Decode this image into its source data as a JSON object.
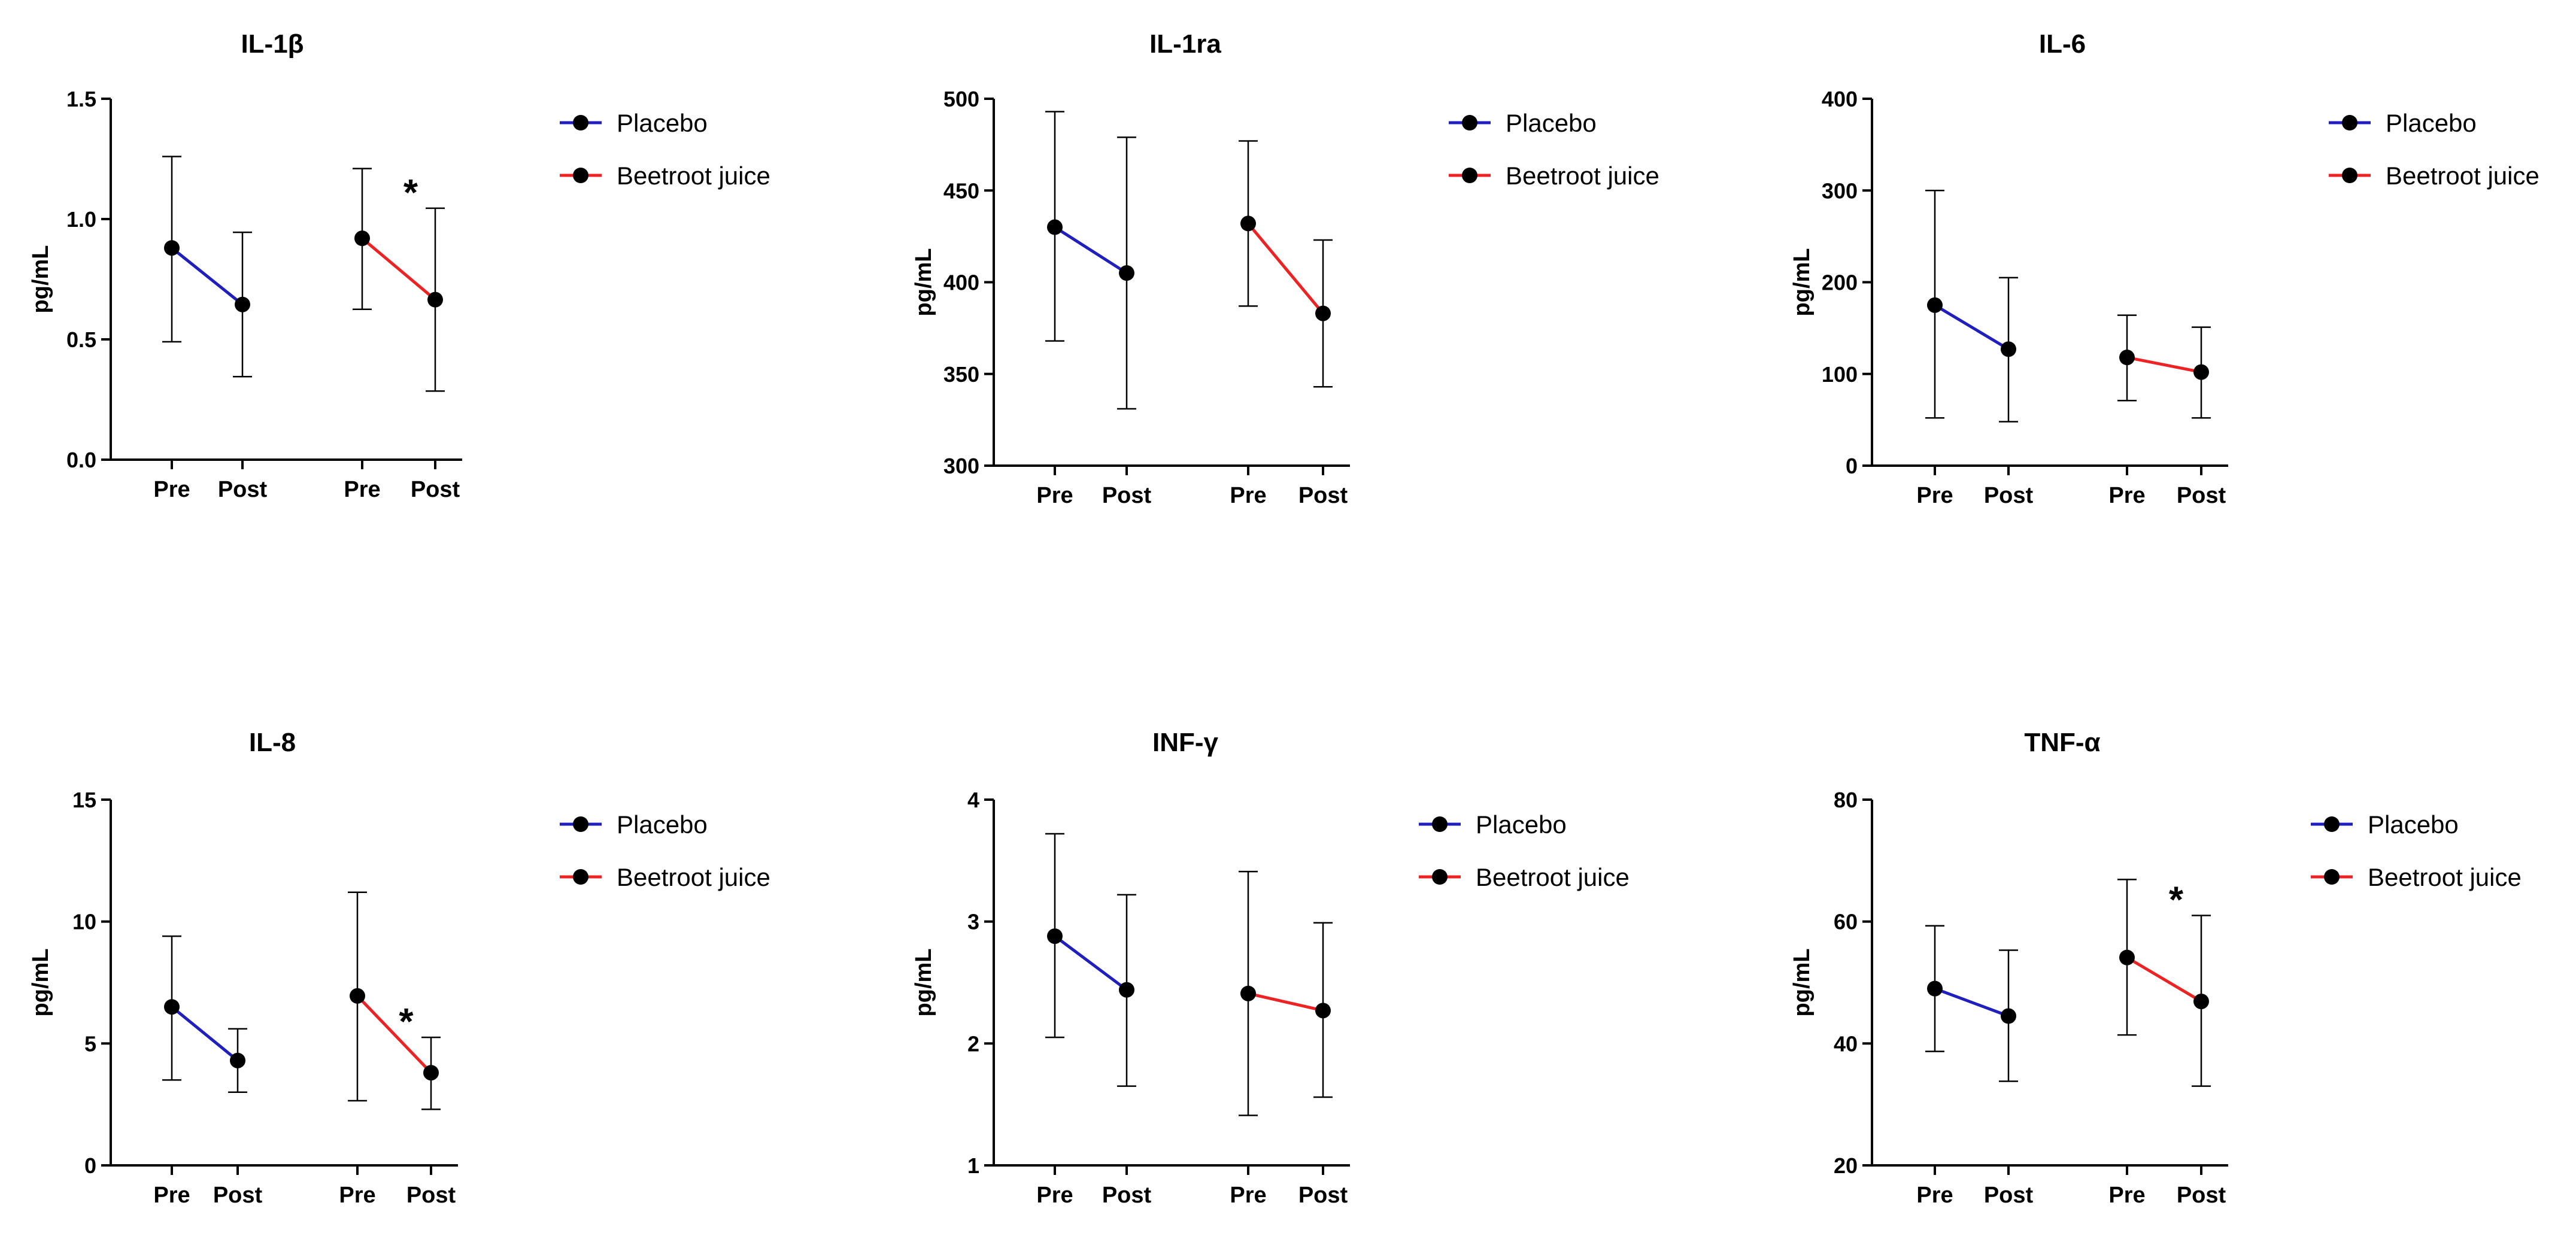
{
  "figure": {
    "series_colors": {
      "placebo": "#1f1fbf",
      "beetroot": "#ee2222"
    },
    "marker_color": "#000000",
    "axis_color": "#000000"
  },
  "chart_data": [
    {
      "type": "line",
      "title": "IL-1β",
      "ylabel": "pg/mL",
      "ylim": [
        0,
        1.5
      ],
      "yticks": [
        0,
        0.5,
        1.0,
        1.5
      ],
      "ytick_labels": [
        "0.0",
        "0.5",
        "1.0",
        "1.5"
      ],
      "x_labels": [
        "Pre",
        "Post",
        "Pre",
        "Post"
      ],
      "legend": [
        "Placebo",
        "Beetroot juice"
      ],
      "legend_position": "right",
      "series": [
        {
          "name": "Placebo",
          "values": [
            0.88,
            0.645
          ],
          "errors_low": [
            0.49,
            0.345
          ],
          "errors_high": [
            1.26,
            0.945
          ]
        },
        {
          "name": "Beetroot juice",
          "values": [
            0.92,
            0.665
          ],
          "errors_low": [
            0.625,
            0.285
          ],
          "errors_high": [
            1.21,
            1.045
          ]
        }
      ],
      "annotation": "*"
    },
    {
      "type": "line",
      "title": "IL-1ra",
      "ylabel": "pg/mL",
      "ylim": [
        300,
        500
      ],
      "yticks": [
        300,
        350,
        400,
        450,
        500
      ],
      "ytick_labels": [
        "300",
        "350",
        "400",
        "450",
        "500"
      ],
      "x_labels": [
        "Pre",
        "Post",
        "Pre",
        "Post"
      ],
      "legend": [
        "Placebo",
        "Beetroot juice"
      ],
      "legend_position": "right",
      "series": [
        {
          "name": "Placebo",
          "values": [
            430,
            405
          ],
          "errors_low": [
            368,
            331
          ],
          "errors_high": [
            493,
            479
          ]
        },
        {
          "name": "Beetroot juice",
          "values": [
            432,
            383
          ],
          "errors_low": [
            387,
            343
          ],
          "errors_high": [
            477,
            423
          ]
        }
      ],
      "annotation": ""
    },
    {
      "type": "line",
      "title": "IL-6",
      "ylabel": "pg/mL",
      "ylim": [
        0,
        400
      ],
      "yticks": [
        0,
        100,
        200,
        300,
        400
      ],
      "ytick_labels": [
        "0",
        "100",
        "200",
        "300",
        "400"
      ],
      "x_labels": [
        "Pre",
        "Post",
        "Pre",
        "Post"
      ],
      "legend": [
        "Placebo",
        "Beetroot juice"
      ],
      "legend_position": "right",
      "series": [
        {
          "name": "Placebo",
          "values": [
            175,
            127
          ],
          "errors_low": [
            52,
            48
          ],
          "errors_high": [
            300,
            205
          ]
        },
        {
          "name": "Beetroot juice",
          "values": [
            118,
            102
          ],
          "errors_low": [
            71,
            52
          ],
          "errors_high": [
            164,
            151
          ]
        }
      ],
      "annotation": ""
    },
    {
      "type": "line",
      "title": "IL-8",
      "ylabel": "pg/mL",
      "ylim": [
        0,
        15
      ],
      "yticks": [
        0,
        5,
        10,
        15
      ],
      "ytick_labels": [
        "0",
        "5",
        "10",
        "15"
      ],
      "x_labels": [
        "Pre",
        "Post",
        "Pre",
        "Post"
      ],
      "legend": [
        "Placebo",
        "Beetroot juice"
      ],
      "legend_position": "right",
      "series": [
        {
          "name": "Placebo",
          "values": [
            6.5,
            4.3
          ],
          "errors_low": [
            3.5,
            3.0
          ],
          "errors_high": [
            9.4,
            5.6
          ]
        },
        {
          "name": "Beetroot juice",
          "values": [
            6.95,
            3.8
          ],
          "errors_low": [
            2.65,
            2.3
          ],
          "errors_high": [
            11.2,
            5.25
          ]
        }
      ],
      "annotation": "*"
    },
    {
      "type": "line",
      "title": "INF-γ",
      "ylabel": "pg/mL",
      "ylim": [
        1,
        4
      ],
      "yticks": [
        1,
        2,
        3,
        4
      ],
      "ytick_labels": [
        "1",
        "2",
        "3",
        "4"
      ],
      "x_labels": [
        "Pre",
        "Post",
        "Pre",
        "Post"
      ],
      "legend": [
        "Placebo",
        "Beetroot juice"
      ],
      "legend_position": "right",
      "series": [
        {
          "name": "Placebo",
          "values": [
            2.88,
            2.44
          ],
          "errors_low": [
            2.05,
            1.65
          ],
          "errors_high": [
            3.72,
            3.22
          ]
        },
        {
          "name": "Beetroot juice",
          "values": [
            2.41,
            2.27
          ],
          "errors_low": [
            1.41,
            1.56
          ],
          "errors_high": [
            3.41,
            2.99
          ]
        }
      ],
      "annotation": ""
    },
    {
      "type": "line",
      "title": "TNF-α",
      "ylabel": "pg/mL",
      "ylim": [
        20,
        80
      ],
      "yticks": [
        20,
        40,
        60,
        80
      ],
      "ytick_labels": [
        "20",
        "40",
        "60",
        "80"
      ],
      "x_labels": [
        "Pre",
        "Post",
        "Pre",
        "Post"
      ],
      "legend": [
        "Placebo",
        "Beetroot juice"
      ],
      "legend_position": "right",
      "series": [
        {
          "name": "Placebo",
          "values": [
            49,
            44.5
          ],
          "errors_low": [
            38.7,
            33.8
          ],
          "errors_high": [
            59.3,
            55.3
          ]
        },
        {
          "name": "Beetroot juice",
          "values": [
            54.1,
            46.9
          ],
          "errors_low": [
            41.4,
            33
          ],
          "errors_high": [
            66.9,
            61
          ]
        }
      ],
      "annotation": "*"
    }
  ]
}
